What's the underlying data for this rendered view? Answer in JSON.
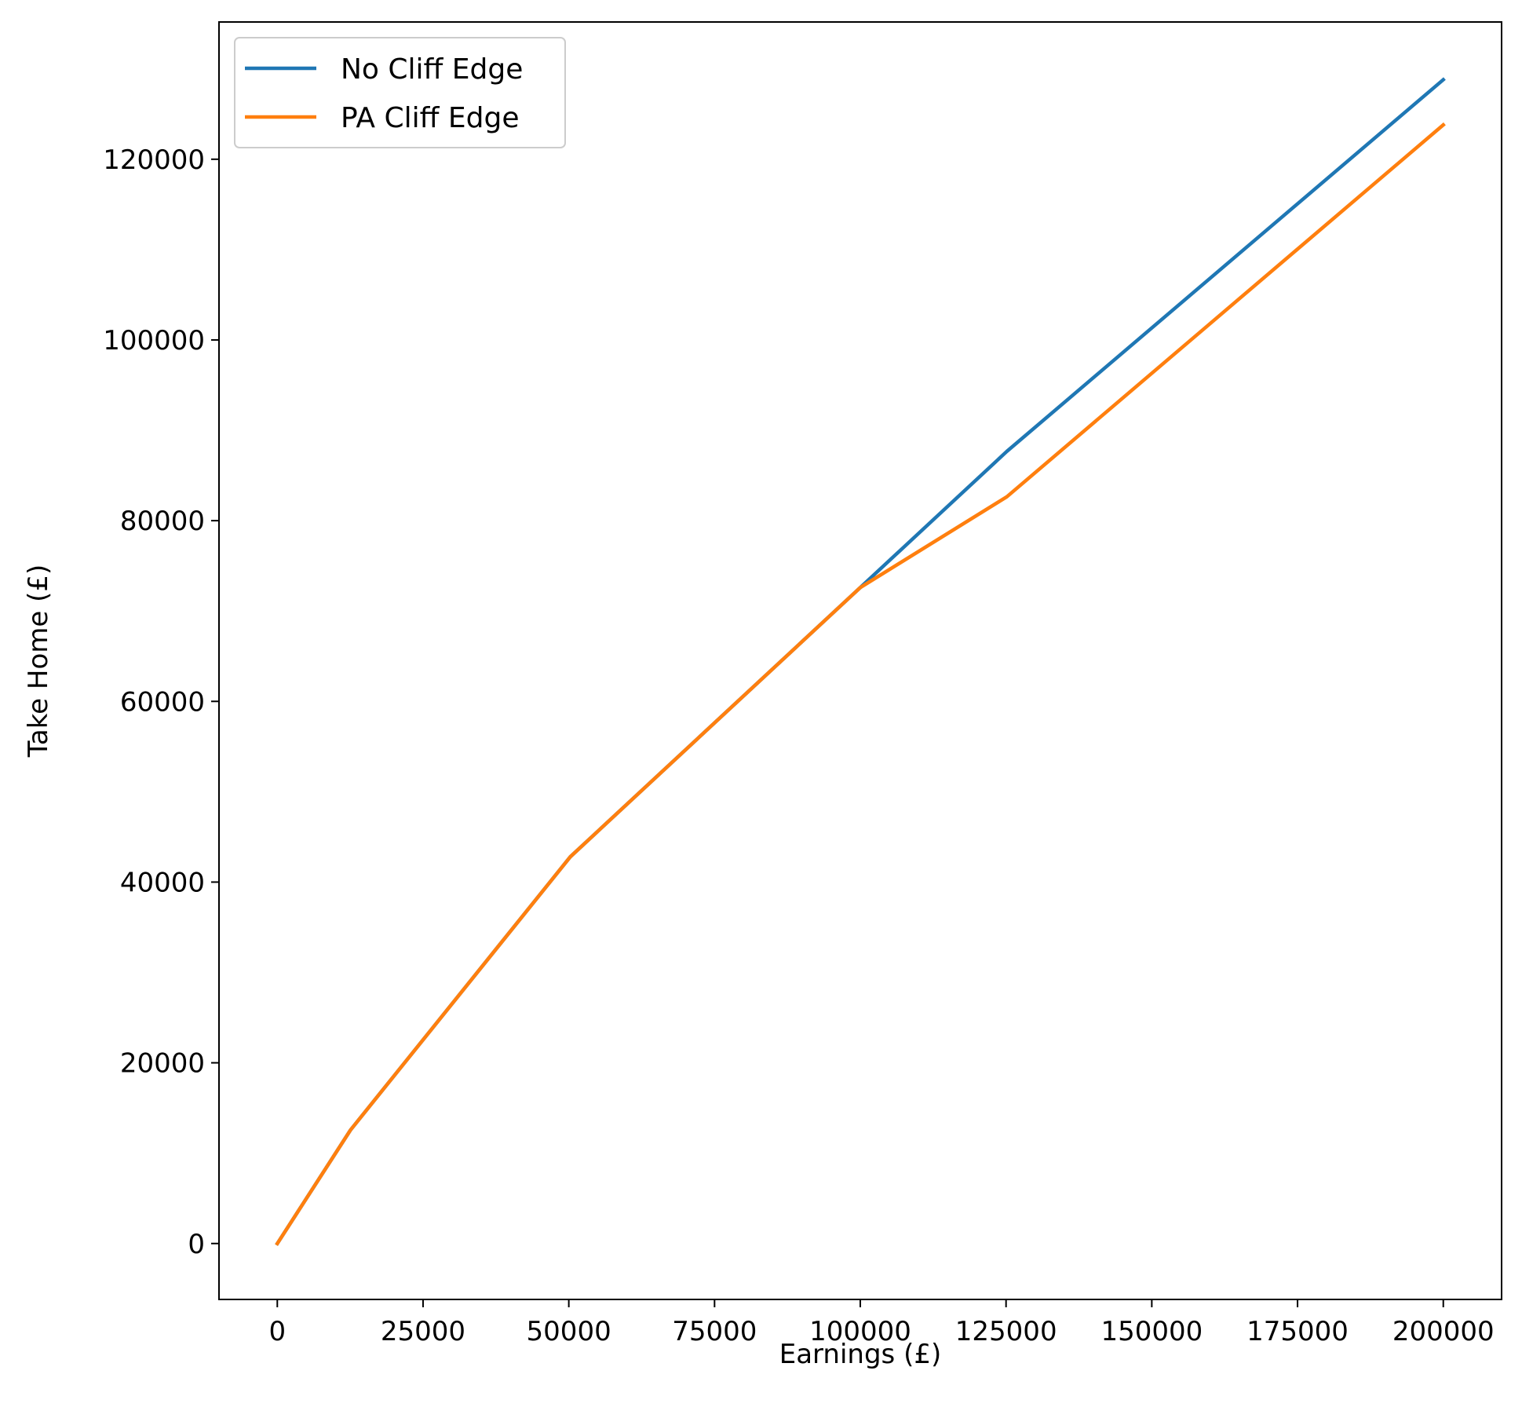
{
  "chart_data": {
    "type": "line",
    "title": "",
    "xlabel": "Earnings (£)",
    "ylabel": "Take Home (£)",
    "xlim": [
      -10000,
      210000
    ],
    "ylim": [
      -6190,
      135190
    ],
    "xticks": [
      0,
      25000,
      50000,
      75000,
      100000,
      125000,
      150000,
      175000,
      200000
    ],
    "yticks": [
      0,
      20000,
      40000,
      60000,
      80000,
      100000,
      120000
    ],
    "grid": false,
    "legend_position": "top-left",
    "series": [
      {
        "name": "No Cliff Edge",
        "color": "#1f77b4",
        "x": [
          0,
          12570,
          50270,
          100000,
          125140,
          200000
        ],
        "y": [
          0,
          12570,
          42800,
          72600,
          87670,
          128800
        ]
      },
      {
        "name": "PA Cliff Edge",
        "color": "#ff7f0e",
        "x": [
          0,
          12570,
          50270,
          100000,
          125140,
          200000
        ],
        "y": [
          0,
          12570,
          42800,
          72600,
          82640,
          123800
        ]
      }
    ]
  }
}
